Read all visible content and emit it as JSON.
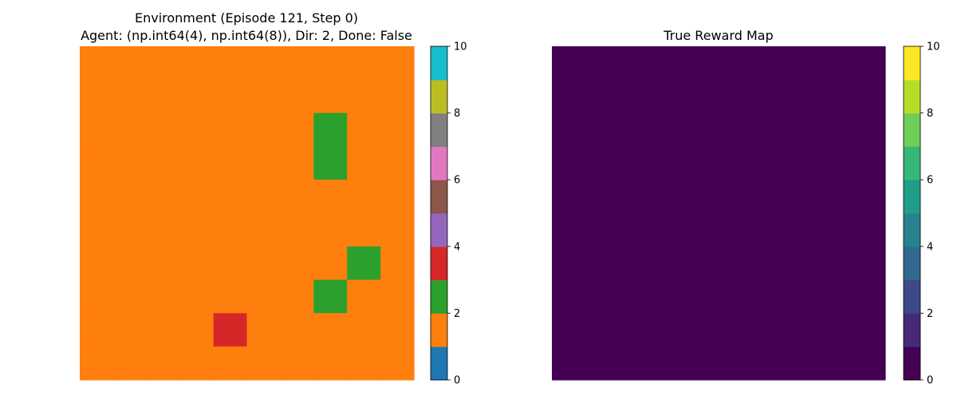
{
  "chart_data": [
    {
      "type": "heatmap",
      "title_line1": "Environment (Episode 121, Step 0)",
      "title_line2": "Agent: (np.int64(4), np.int64(8)), Dir: 2, Done: False",
      "grid_size": [
        10,
        10
      ],
      "values_rows": [
        [
          1,
          1,
          1,
          1,
          1,
          1,
          1,
          1,
          1,
          1
        ],
        [
          1,
          1,
          1,
          1,
          1,
          1,
          1,
          1,
          1,
          1
        ],
        [
          1,
          1,
          1,
          1,
          1,
          1,
          1,
          2,
          1,
          1
        ],
        [
          1,
          1,
          1,
          1,
          1,
          1,
          1,
          2,
          1,
          1
        ],
        [
          1,
          1,
          1,
          1,
          1,
          1,
          1,
          1,
          1,
          1
        ],
        [
          1,
          1,
          1,
          1,
          1,
          1,
          1,
          1,
          1,
          1
        ],
        [
          1,
          1,
          1,
          1,
          1,
          1,
          1,
          1,
          2,
          1
        ],
        [
          1,
          1,
          1,
          1,
          1,
          1,
          1,
          2,
          1,
          1
        ],
        [
          1,
          1,
          1,
          1,
          3,
          1,
          1,
          1,
          1,
          1
        ],
        [
          1,
          1,
          1,
          1,
          1,
          1,
          1,
          1,
          1,
          1
        ]
      ],
      "colormap": "tab10",
      "vmin": 0,
      "vmax": 10,
      "colorbar": {
        "ticks": [
          0,
          2,
          4,
          6,
          8,
          10
        ],
        "tick_labels": [
          "0",
          "2",
          "4",
          "6",
          "8",
          "10"
        ],
        "colors": [
          "#1f77b4",
          "#ff7f0e",
          "#2ca02c",
          "#d62728",
          "#9467bd",
          "#8c564b",
          "#e377c2",
          "#7f7f7f",
          "#bcbd22",
          "#17becf"
        ]
      },
      "axes": "off"
    },
    {
      "type": "heatmap",
      "title": "True Reward Map",
      "grid_size": [
        10,
        10
      ],
      "uniform_value": 0,
      "colormap": "viridis",
      "vmin": 0,
      "vmax": 10,
      "colorbar": {
        "ticks": [
          0,
          2,
          4,
          6,
          8,
          10
        ],
        "tick_labels": [
          "0",
          "2",
          "4",
          "6",
          "8",
          "10"
        ],
        "colors": [
          "#440154",
          "#482878",
          "#3e4989",
          "#31688e",
          "#26828e",
          "#1f9e89",
          "#35b779",
          "#6ece58",
          "#b5de2b",
          "#fde725"
        ]
      },
      "axes": "off"
    }
  ]
}
